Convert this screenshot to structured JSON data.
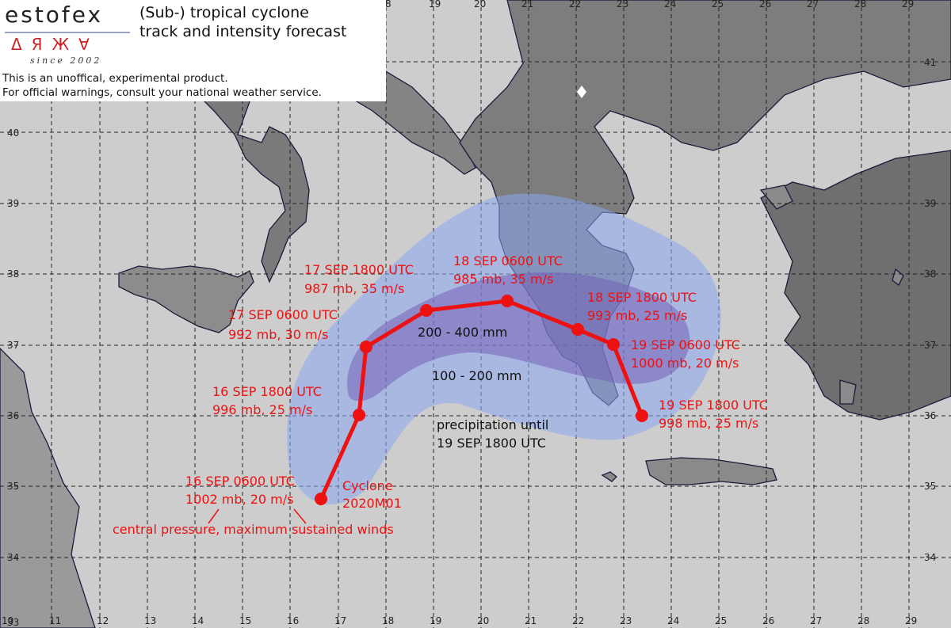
{
  "header": {
    "brand": "estofex",
    "since": "since 2002",
    "title_line1": "(Sub-) tropical cyclone",
    "title_line2": "track and intensity forecast",
    "disclaimer_line1": "This is an unoffical, experimental product.",
    "disclaimer_line2": "For official warnings, consult your national weather service."
  },
  "map": {
    "longitude_ticks_bottom": [
      "10",
      "11",
      "12",
      "13",
      "14",
      "15",
      "16",
      "17",
      "18",
      "19",
      "20",
      "21",
      "22",
      "23",
      "24",
      "25",
      "26",
      "27",
      "28",
      "29"
    ],
    "longitude_ticks_top": [
      "8",
      "19",
      "20",
      "21",
      "22",
      "23",
      "24",
      "25",
      "26",
      "27",
      "28",
      "29"
    ],
    "latitude_ticks_left": [
      "40",
      "39",
      "38",
      "37",
      "36",
      "35",
      "34",
      "33"
    ],
    "latitude_ticks_right": [
      "41",
      "39",
      "38",
      "37",
      "36",
      "35",
      "34"
    ]
  },
  "cyclone": {
    "name_line1": "Cyclone",
    "name_line2": "2020M01",
    "track_color": "#ee1111",
    "track": [
      {
        "time": "16 SEP 0600 UTC",
        "values": "1002 mb, 20 m/s"
      },
      {
        "time": "16 SEP 1800 UTC",
        "values": "996 mb, 25 m/s"
      },
      {
        "time": "17 SEP 0600 UTC",
        "values": "992 mb, 30 m/s"
      },
      {
        "time": "17 SEP 1800 UTC",
        "values": "987 mb, 35 m/s"
      },
      {
        "time": "18 SEP 0600 UTC",
        "values": "985 mb, 35 m/s"
      },
      {
        "time": "18 SEP 1800 UTC",
        "values": "993 mb, 25 m/s"
      },
      {
        "time": "19 SEP 0600 UTC",
        "values": "1000 mb, 20 m/s"
      },
      {
        "time": "19 SEP 1800 UTC",
        "values": "998 mb, 25 m/s"
      }
    ],
    "legend_note": "central pressure, maximum sustained winds"
  },
  "precipitation": {
    "inner_label": "200 - 400 mm",
    "outer_label": "100 - 200 mm",
    "until_line1": "precipitation until",
    "until_line2": "19 SEP 1800 UTC",
    "outer_color": "#8aa8f0",
    "inner_color": "#7560b8"
  }
}
